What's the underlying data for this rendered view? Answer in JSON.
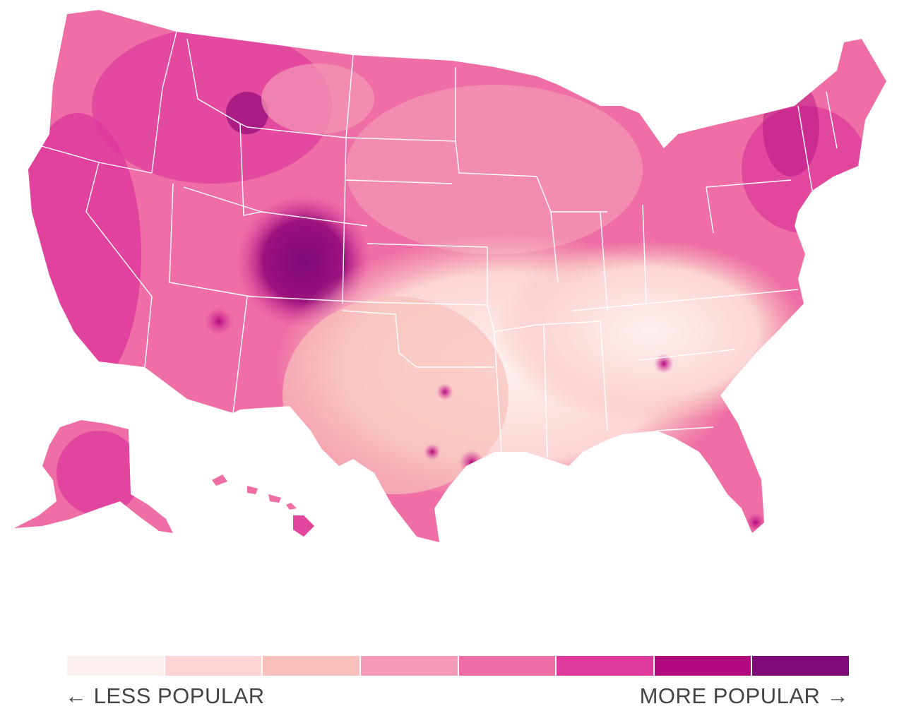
{
  "legend": {
    "less_label": "← LESS POPULAR",
    "more_label": "MORE POPULAR →",
    "colors": [
      "#fdf1ef",
      "#fbd6d5",
      "#f8c0ba",
      "#f49ab6",
      "#ee6ea5",
      "#de3b9c",
      "#b2087e",
      "#7f0a79"
    ]
  },
  "map_fill": {
    "land": "#f4a6c4",
    "state_borders": "#ffffff"
  }
}
